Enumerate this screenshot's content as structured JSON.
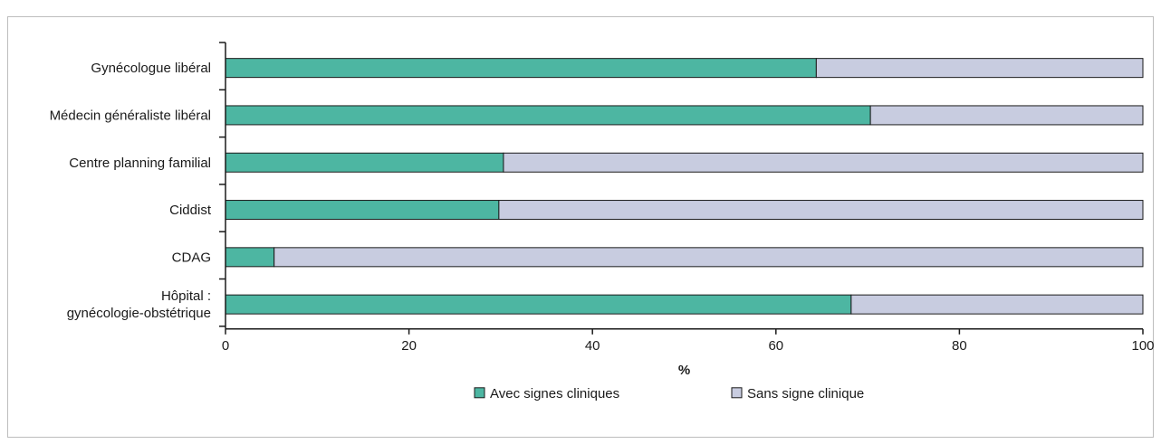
{
  "chart_data": {
    "type": "bar",
    "orientation": "horizontal",
    "stacked": true,
    "categories": [
      [
        "Gynécologue libéral"
      ],
      [
        "Médecin généraliste libéral"
      ],
      [
        "Centre planning familial"
      ],
      [
        "Ciddist"
      ],
      [
        "CDAG"
      ],
      [
        "Hôpital :",
        "gynécologie-obstétrique"
      ]
    ],
    "series": [
      {
        "name": "Avec signes cliniques",
        "color": "#4db6a2",
        "values": [
          64.4,
          70.3,
          30.3,
          29.8,
          5.3,
          68.2
        ]
      },
      {
        "name": "Sans signe clinique",
        "color": "#c8cce0",
        "values": [
          35.6,
          29.7,
          69.7,
          70.2,
          94.7,
          31.8
        ]
      }
    ],
    "title": "",
    "xlabel": "%",
    "ylabel": "",
    "xlim": [
      0,
      100
    ],
    "xticks": [
      0,
      20,
      40,
      60,
      80,
      100
    ],
    "grid": false,
    "legend_position": "bottom"
  }
}
